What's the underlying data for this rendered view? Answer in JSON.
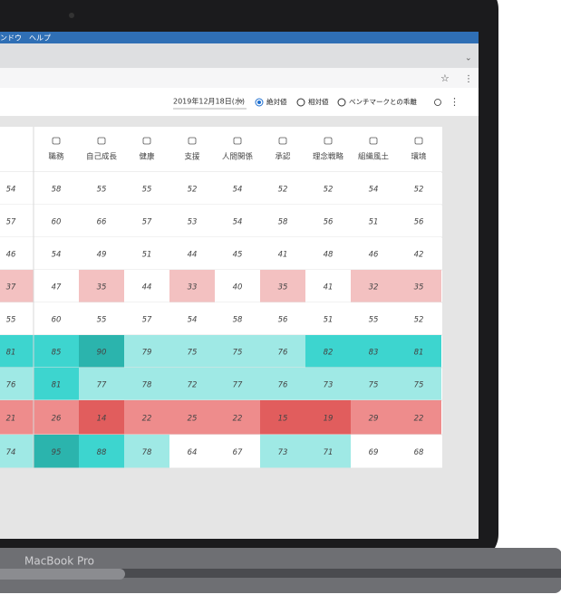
{
  "menu": [
    "ンドウ",
    "ヘルプ"
  ],
  "toolbar": {
    "date": "2019年12月18日(水)",
    "options": [
      "絶対値",
      "相対値",
      "ベンチマークとの乖離"
    ],
    "selected": 0
  },
  "table": {
    "columns": [
      null,
      "職務",
      "自己成長",
      "健康",
      "支援",
      "人間関係",
      "承認",
      "理念戦略",
      "組織風土",
      "環境"
    ],
    "rows": [
      [
        54,
        58,
        55,
        55,
        52,
        54,
        52,
        52,
        54,
        52
      ],
      [
        57,
        60,
        66,
        57,
        53,
        54,
        58,
        56,
        51,
        56
      ],
      [
        46,
        54,
        49,
        51,
        44,
        45,
        41,
        48,
        46,
        42
      ],
      [
        37,
        47,
        35,
        44,
        33,
        40,
        35,
        41,
        32,
        35
      ],
      [
        55,
        60,
        55,
        57,
        54,
        58,
        56,
        51,
        55,
        52
      ],
      [
        81,
        85,
        90,
        79,
        75,
        75,
        76,
        82,
        83,
        81
      ],
      [
        76,
        81,
        77,
        78,
        72,
        77,
        76,
        73,
        75,
        75
      ],
      [
        21,
        26,
        14,
        22,
        25,
        22,
        15,
        19,
        29,
        22
      ],
      [
        74,
        95,
        88,
        78,
        64,
        67,
        73,
        71,
        69,
        68
      ]
    ],
    "cell_colors": [
      [
        "#ffffff",
        "#ffffff",
        "#ffffff",
        "#ffffff",
        "#ffffff",
        "#ffffff",
        "#ffffff",
        "#ffffff",
        "#ffffff",
        "#ffffff"
      ],
      [
        "#ffffff",
        "#ffffff",
        "#ffffff",
        "#ffffff",
        "#ffffff",
        "#ffffff",
        "#ffffff",
        "#ffffff",
        "#ffffff",
        "#ffffff"
      ],
      [
        "#ffffff",
        "#ffffff",
        "#ffffff",
        "#ffffff",
        "#ffffff",
        "#ffffff",
        "#ffffff",
        "#ffffff",
        "#ffffff",
        "#ffffff"
      ],
      [
        "#f3c1c1",
        "#ffffff",
        "#f3c1c1",
        "#ffffff",
        "#f3c1c1",
        "#ffffff",
        "#f3c1c1",
        "#ffffff",
        "#f3c1c1",
        "#f3c1c1"
      ],
      [
        "#ffffff",
        "#ffffff",
        "#ffffff",
        "#ffffff",
        "#ffffff",
        "#ffffff",
        "#ffffff",
        "#ffffff",
        "#ffffff",
        "#ffffff"
      ],
      [
        "#3dd5cf",
        "#3dd5cf",
        "#2bb4ad",
        "#9fe9e5",
        "#9fe9e5",
        "#9fe9e5",
        "#9fe9e5",
        "#3dd5cf",
        "#3dd5cf",
        "#3dd5cf"
      ],
      [
        "#9fe9e5",
        "#3dd5cf",
        "#9fe9e5",
        "#9fe9e5",
        "#9fe9e5",
        "#9fe9e5",
        "#9fe9e5",
        "#9fe9e5",
        "#9fe9e5",
        "#9fe9e5"
      ],
      [
        "#ee8c8c",
        "#ee8c8c",
        "#e15d5d",
        "#ee8c8c",
        "#ee8c8c",
        "#ee8c8c",
        "#e15d5d",
        "#e15d5d",
        "#ee8c8c",
        "#ee8c8c"
      ],
      [
        "#9fe9e5",
        "#2bb4ad",
        "#3dd5cf",
        "#9fe9e5",
        "#ffffff",
        "#ffffff",
        "#9fe9e5",
        "#9fe9e5",
        "#ffffff",
        "#ffffff"
      ]
    ]
  },
  "device": "MacBook Pro"
}
